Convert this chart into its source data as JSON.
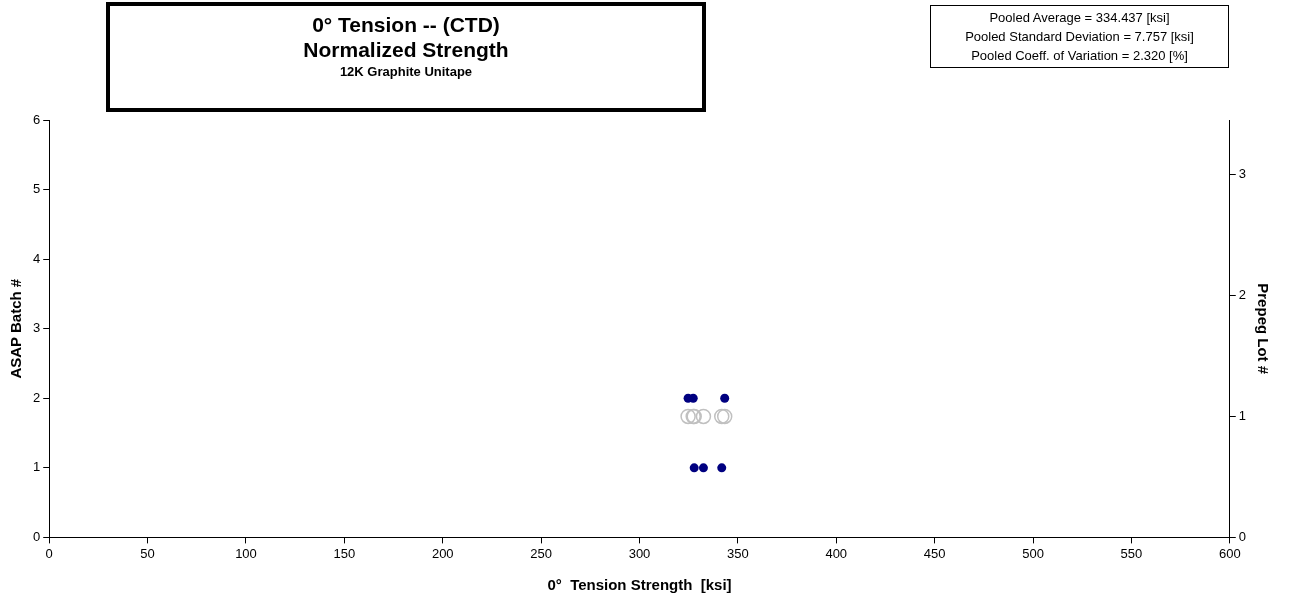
{
  "chart_data": {
    "type": "scatter",
    "title": "0° Tension -- (CTD)\nNormalized Strength",
    "subtitle": "12K Graphite Unitape",
    "xlabel": "0°  Tension Strength  [ksi]",
    "ylabel": "ASAP Batch #",
    "y2label": "Prepeg Lot #",
    "annotations": [
      "Pooled Average = 334.437 [ksi]",
      "Pooled Standard Deviation = 7.757  [ksi]",
      "Pooled Coeff. of  Variation = 2.320 [%]"
    ],
    "xlim": [
      0,
      600
    ],
    "xticks": [
      0,
      50,
      100,
      150,
      200,
      250,
      300,
      350,
      400,
      450,
      500,
      550,
      600
    ],
    "ylim": [
      0,
      6
    ],
    "yticks": [
      0,
      1,
      2,
      3,
      4,
      5,
      6
    ],
    "y2lim": [
      0,
      3.45
    ],
    "y2ticks": [
      0,
      1,
      2,
      3
    ],
    "grid": false,
    "legend": false,
    "marker": "circle",
    "series": [
      {
        "color": "#000080",
        "x": [
          324.7,
          327.3,
          343.3,
          327.8,
          332.5,
          341.8
        ],
        "values": [
          2,
          2,
          2,
          1,
          1,
          1
        ]
      },
      {
        "color": "#c0c0c0",
        "axis": "y2",
        "x": [
          324.7,
          327.3,
          327.8,
          332.5,
          341.8,
          343.3
        ],
        "values": [
          1,
          1,
          1,
          1,
          1,
          1
        ]
      }
    ]
  }
}
